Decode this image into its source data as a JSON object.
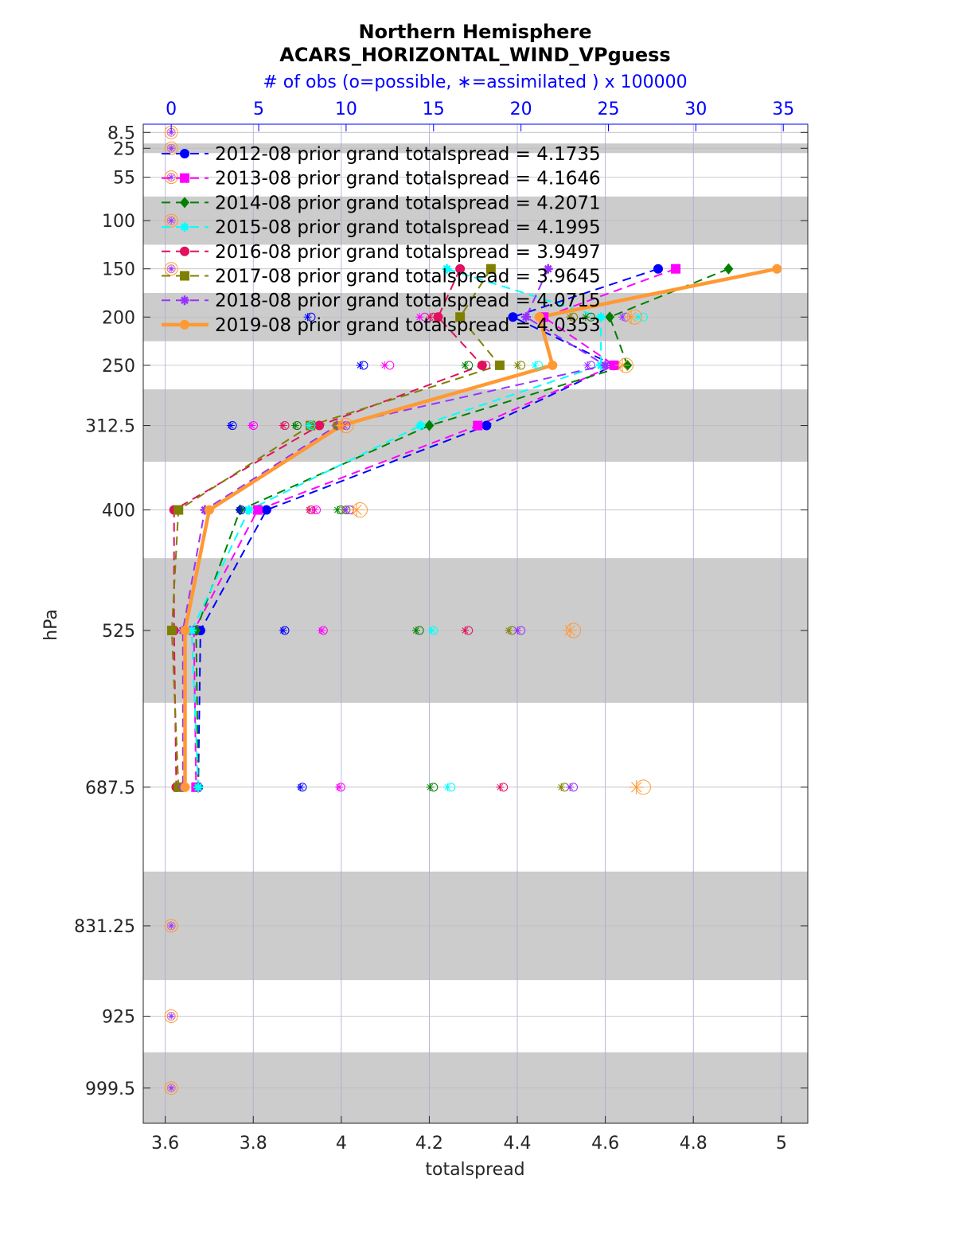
{
  "chart_data": {
    "type": "line",
    "title": "Northern Hemisphere",
    "subtitle": "ACARS_HORIZONTAL_WIND_VPguess",
    "top_axis_label": "# of obs (o=possible, ∗=assimilated ) x 100000",
    "xlabel": "totalspread",
    "ylabel": "hPa",
    "xlim": [
      3.55,
      5.06
    ],
    "x_ticks": [
      "3.6",
      "3.8",
      "4",
      "4.2",
      "4.4",
      "4.6",
      "4.8",
      "5"
    ],
    "x_tick_values": [
      3.6,
      3.8,
      4.0,
      4.2,
      4.4,
      4.6,
      4.8,
      5.0
    ],
    "top_xlim": [
      -1.6,
      36.4
    ],
    "top_ticks": [
      "0",
      "5",
      "10",
      "15",
      "20",
      "25",
      "30",
      "35"
    ],
    "top_tick_values": [
      0,
      5,
      10,
      15,
      20,
      25,
      30,
      35
    ],
    "y_ticks": [
      "8.5",
      "25",
      "55",
      "100",
      "150",
      "200",
      "250",
      "312.5",
      "400",
      "525",
      "687.5",
      "831.25",
      "925",
      "999.5"
    ],
    "y_tick_values": [
      8.5,
      25,
      55,
      100,
      150,
      200,
      250,
      312.5,
      400,
      525,
      687.5,
      831.25,
      925,
      999.5
    ],
    "ylim": [
      0,
      1036
    ],
    "shaded_layers": [
      [
        20,
        30
      ],
      [
        75,
        125
      ],
      [
        175,
        225
      ],
      [
        275,
        350
      ],
      [
        450,
        600
      ],
      [
        775,
        887.5
      ],
      [
        962.5,
        1036
      ]
    ],
    "grid": true,
    "legend_position": "top-left",
    "levels": [
      150,
      200,
      250,
      312.5,
      400,
      525,
      687.5
    ],
    "empty_levels": [
      8.5,
      25,
      55,
      100,
      150,
      831.25,
      925,
      999.5
    ],
    "series": [
      {
        "name": "2012-08 prior grand totalspread = 4.1735",
        "color": "#0000ff",
        "marker": "circle",
        "dash": true,
        "width": 2,
        "values": [
          4.72,
          4.39,
          4.62,
          4.33,
          3.83,
          3.68,
          3.675
        ],
        "obs_levels": [
          200,
          250,
          312.5,
          400,
          525,
          687.5
        ],
        "possible": [
          8,
          11,
          3.5,
          4,
          6.5,
          7.5
        ],
        "assimilated": [
          7.8,
          10.8,
          3.4,
          3.9,
          6.4,
          7.4
        ]
      },
      {
        "name": "2013-08 prior grand totalspread = 4.1646",
        "color": "#ff00ff",
        "marker": "square",
        "dash": true,
        "width": 2,
        "values": [
          4.76,
          4.46,
          4.62,
          4.31,
          3.81,
          3.665,
          3.67
        ],
        "obs_levels": [
          200,
          250,
          312.5,
          400,
          525,
          687.5
        ],
        "possible": [
          14.5,
          12.5,
          4.7,
          8.3,
          8.7,
          9.7
        ],
        "assimilated": [
          14.2,
          12.2,
          4.6,
          8.2,
          8.6,
          9.6
        ]
      },
      {
        "name": "2014-08 prior grand totalspread = 4.2071",
        "color": "#008000",
        "marker": "diamond",
        "dash": true,
        "width": 2,
        "values": [
          4.88,
          4.61,
          4.65,
          4.2,
          3.77,
          3.67,
          3.675
        ],
        "obs_levels": [
          200,
          250,
          312.5,
          400,
          525,
          687.5
        ],
        "possible": [
          24,
          17,
          7.2,
          9.7,
          14.2,
          15
        ],
        "assimilated": [
          23.7,
          16.8,
          7.1,
          9.5,
          14,
          14.8
        ]
      },
      {
        "name": "2015-08 prior grand totalspread = 4.1995",
        "color": "#00ffff",
        "marker": "star",
        "dash": true,
        "width": 2,
        "values": [
          4.24,
          4.59,
          4.59,
          4.18,
          3.79,
          3.66,
          3.675
        ],
        "obs_levels": [
          200,
          250,
          312.5,
          400,
          525,
          687.5
        ],
        "possible": [
          27,
          21,
          8,
          10,
          15,
          16
        ],
        "assimilated": [
          26.7,
          20.8,
          7.9,
          9.9,
          14.9,
          15.8
        ]
      },
      {
        "name": "2016-08 prior grand totalspread = 3.9497",
        "color": "#e0115f",
        "marker": "circle",
        "dash": true,
        "width": 2,
        "values": [
          4.27,
          4.22,
          4.32,
          3.95,
          3.62,
          3.62,
          3.625
        ],
        "obs_levels": [
          200,
          250,
          312.5,
          400,
          525,
          687.5
        ],
        "possible": [
          15,
          18,
          6.5,
          8,
          17,
          19
        ],
        "assimilated": [
          14.8,
          17.8,
          6.4,
          7.9,
          16.8,
          18.8
        ]
      },
      {
        "name": "2017-08 prior grand totalspread = 3.9645",
        "color": "#808000",
        "marker": "square",
        "dash": true,
        "width": 2,
        "values": [
          4.34,
          4.27,
          4.36,
          3.93,
          3.63,
          3.615,
          3.63
        ],
        "obs_levels": [
          200,
          250,
          312.5,
          400,
          525,
          687.5
        ],
        "possible": [
          23,
          20,
          9.5,
          10,
          19.5,
          22.5
        ],
        "assimilated": [
          22.8,
          19.8,
          9.4,
          9.9,
          19.3,
          22.3
        ]
      },
      {
        "name": "2018-08 prior grand totalspread = 4.0715",
        "color": "#9932ff",
        "marker": "star",
        "dash": true,
        "width": 2,
        "values": [
          4.47,
          4.42,
          4.6,
          3.99,
          3.69,
          3.64,
          3.64
        ],
        "obs_levels": [
          200,
          250,
          312.5,
          400,
          525,
          687.5
        ],
        "possible": [
          26,
          24,
          10,
          10.2,
          20,
          23
        ],
        "assimilated": [
          25.8,
          23.8,
          9.9,
          10,
          19.8,
          22.8
        ]
      },
      {
        "name": "2019-08 prior grand totalspread = 4.0353",
        "color": "#ff9933",
        "marker": "circle",
        "dash": false,
        "width": 4.5,
        "values": [
          4.99,
          4.45,
          4.48,
          4.0,
          3.7,
          3.645,
          3.645
        ],
        "obs_levels": [
          200,
          250,
          312.5,
          400,
          525,
          687.5
        ],
        "possible": [
          26.5,
          26,
          10,
          10.8,
          23,
          27
        ],
        "assimilated": [
          26.3,
          25.8,
          9.8,
          10.6,
          22.8,
          26.6
        ]
      }
    ]
  }
}
